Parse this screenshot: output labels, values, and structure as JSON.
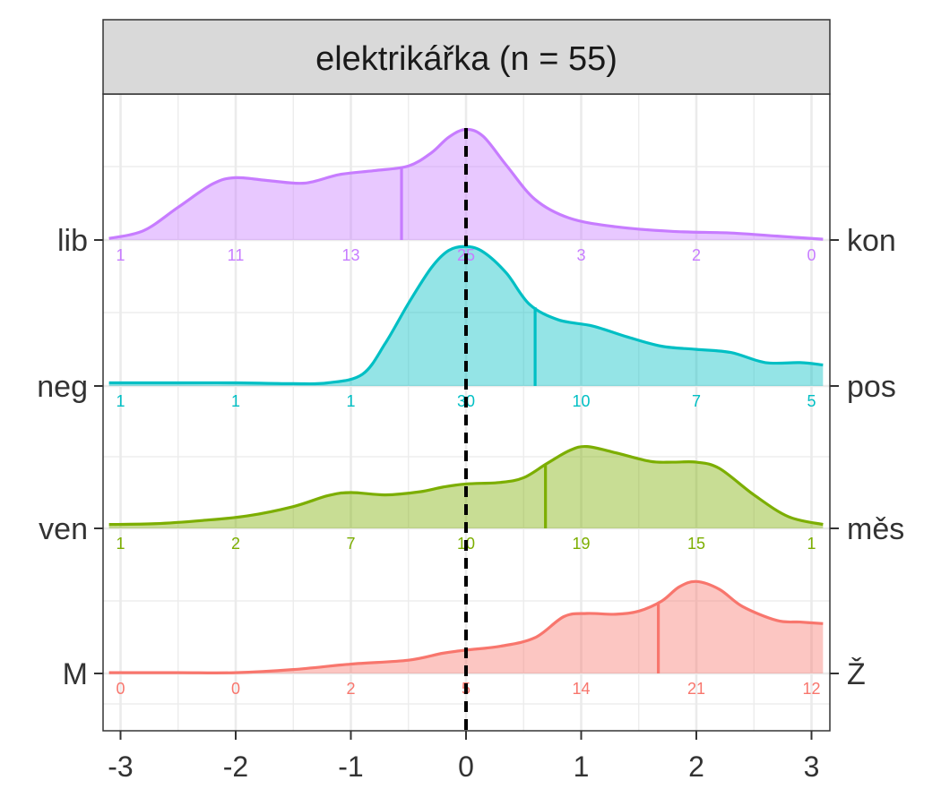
{
  "chart_data": {
    "type": "ridgeline",
    "title": "elektrikářka (n = 55)",
    "xlim": [
      -3,
      3
    ],
    "x_ticks": [
      -3,
      -2,
      -1,
      0,
      1,
      2,
      3
    ],
    "x_tick_labels": [
      "-3",
      "-2",
      "-1",
      "0",
      "1",
      "2",
      "3"
    ],
    "reference_line_x": 0,
    "count_positions": [
      -3,
      -2,
      -1,
      0,
      1,
      2,
      3
    ],
    "grid": true,
    "series": [
      {
        "left_label": "lib",
        "right_label": "kon",
        "color": "#C77CFF",
        "counts": [
          1,
          11,
          13,
          25,
          3,
          2,
          0
        ],
        "counts_text": [
          "1",
          "11",
          "13",
          "25",
          "3",
          "2",
          "0"
        ],
        "mean": -0.56,
        "density": [
          [
            -3.1,
            0.02
          ],
          [
            -2.8,
            0.12
          ],
          [
            -2.5,
            0.42
          ],
          [
            -2.2,
            0.72
          ],
          [
            -2.0,
            0.8
          ],
          [
            -1.7,
            0.76
          ],
          [
            -1.4,
            0.73
          ],
          [
            -1.1,
            0.84
          ],
          [
            -0.8,
            0.89
          ],
          [
            -0.5,
            0.95
          ],
          [
            -0.3,
            1.12
          ],
          [
            -0.15,
            1.32
          ],
          [
            0.0,
            1.42
          ],
          [
            0.15,
            1.33
          ],
          [
            0.35,
            0.96
          ],
          [
            0.6,
            0.52
          ],
          [
            0.9,
            0.28
          ],
          [
            1.3,
            0.17
          ],
          [
            1.8,
            0.11
          ],
          [
            2.3,
            0.09
          ],
          [
            2.7,
            0.05
          ],
          [
            3.1,
            0.01
          ]
        ]
      },
      {
        "left_label": "neg",
        "right_label": "pos",
        "color": "#00BFC4",
        "counts": [
          1,
          1,
          1,
          30,
          10,
          7,
          5
        ],
        "counts_text": [
          "1",
          "1",
          "1",
          "30",
          "10",
          "7",
          "5"
        ],
        "mean": 0.6,
        "density": [
          [
            -3.1,
            0.04
          ],
          [
            -2.5,
            0.04
          ],
          [
            -2.0,
            0.04
          ],
          [
            -1.5,
            0.03
          ],
          [
            -1.2,
            0.04
          ],
          [
            -0.9,
            0.15
          ],
          [
            -0.7,
            0.55
          ],
          [
            -0.5,
            1.06
          ],
          [
            -0.3,
            1.52
          ],
          [
            -0.15,
            1.74
          ],
          [
            0.0,
            1.79
          ],
          [
            0.15,
            1.72
          ],
          [
            0.35,
            1.45
          ],
          [
            0.55,
            1.05
          ],
          [
            0.8,
            0.85
          ],
          [
            1.1,
            0.77
          ],
          [
            1.4,
            0.63
          ],
          [
            1.7,
            0.51
          ],
          [
            2.0,
            0.47
          ],
          [
            2.3,
            0.43
          ],
          [
            2.6,
            0.3
          ],
          [
            2.9,
            0.3
          ],
          [
            3.1,
            0.27
          ]
        ]
      },
      {
        "left_label": "ven",
        "right_label": "měs",
        "color": "#7CAE00",
        "counts": [
          1,
          2,
          7,
          10,
          19,
          15,
          1
        ],
        "counts_text": [
          "1",
          "2",
          "7",
          "10",
          "19",
          "15",
          "1"
        ],
        "mean": 0.69,
        "density": [
          [
            -3.1,
            0.05
          ],
          [
            -2.7,
            0.06
          ],
          [
            -2.3,
            0.1
          ],
          [
            -1.9,
            0.16
          ],
          [
            -1.5,
            0.28
          ],
          [
            -1.2,
            0.42
          ],
          [
            -1.0,
            0.46
          ],
          [
            -0.7,
            0.43
          ],
          [
            -0.4,
            0.47
          ],
          [
            -0.2,
            0.53
          ],
          [
            0.0,
            0.57
          ],
          [
            0.3,
            0.59
          ],
          [
            0.5,
            0.65
          ],
          [
            0.7,
            0.83
          ],
          [
            0.9,
            1.0
          ],
          [
            1.05,
            1.05
          ],
          [
            1.3,
            0.97
          ],
          [
            1.6,
            0.86
          ],
          [
            1.8,
            0.85
          ],
          [
            2.0,
            0.85
          ],
          [
            2.2,
            0.77
          ],
          [
            2.5,
            0.43
          ],
          [
            2.8,
            0.15
          ],
          [
            3.1,
            0.05
          ]
        ]
      },
      {
        "left_label": "M",
        "right_label": "Ž",
        "color": "#F8766D",
        "counts": [
          0,
          0,
          2,
          5,
          14,
          21,
          12
        ],
        "counts_text": [
          "0",
          "0",
          "2",
          "5",
          "14",
          "21",
          "12"
        ],
        "mean": 1.67,
        "density": [
          [
            -3.1,
            0.01
          ],
          [
            -2.5,
            0.01
          ],
          [
            -2.0,
            0.01
          ],
          [
            -1.5,
            0.05
          ],
          [
            -1.0,
            0.12
          ],
          [
            -0.5,
            0.17
          ],
          [
            -0.2,
            0.26
          ],
          [
            0.0,
            0.3
          ],
          [
            0.3,
            0.35
          ],
          [
            0.6,
            0.46
          ],
          [
            0.85,
            0.73
          ],
          [
            1.05,
            0.77
          ],
          [
            1.3,
            0.76
          ],
          [
            1.5,
            0.8
          ],
          [
            1.7,
            0.93
          ],
          [
            1.85,
            1.11
          ],
          [
            2.0,
            1.18
          ],
          [
            2.2,
            1.08
          ],
          [
            2.4,
            0.86
          ],
          [
            2.7,
            0.68
          ],
          [
            2.9,
            0.66
          ],
          [
            3.1,
            0.64
          ]
        ]
      }
    ]
  }
}
